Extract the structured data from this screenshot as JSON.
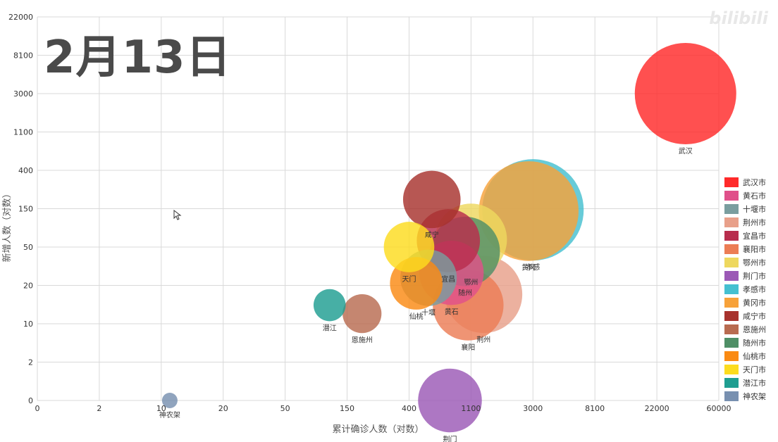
{
  "date_label": "2月13日",
  "watermark": "bilibili",
  "chart_data": {
    "type": "scatter",
    "subtype": "bubble",
    "xlabel": "累计确诊人数（对数）",
    "ylabel": "新增人数（对数）",
    "x_tick_labels": [
      "0",
      "2",
      "10",
      "20",
      "50",
      "150",
      "400",
      "1100",
      "3000",
      "8100",
      "22000",
      "60000"
    ],
    "y_tick_labels": [
      "0",
      "2",
      "10",
      "20",
      "50",
      "150",
      "400",
      "1100",
      "3000",
      "8100",
      "22000"
    ],
    "x_scale": "log",
    "y_scale": "log",
    "grid": true,
    "legend_position": "right",
    "series": [
      {
        "name": "武汉市",
        "label": "武汉",
        "color": "#ff2a2a",
        "x": 35000,
        "y": 3000,
        "size": 35000
      },
      {
        "name": "黄石市",
        "label": "黄石",
        "color": "#e0508a",
        "x": 800,
        "y": 27,
        "size": 800
      },
      {
        "name": "十堰市",
        "label": "十堰",
        "color": "#7a9e9f",
        "x": 550,
        "y": 24,
        "size": 550
      },
      {
        "name": "荆州市",
        "label": "荆州",
        "color": "#e8a08a",
        "x": 1350,
        "y": 17,
        "size": 1350
      },
      {
        "name": "宜昌市",
        "label": "宜昌",
        "color": "#b82d4d",
        "x": 760,
        "y": 60,
        "size": 760
      },
      {
        "name": "襄阳市",
        "label": "襄阳",
        "color": "#ec7d55",
        "x": 1050,
        "y": 14,
        "size": 1050
      },
      {
        "name": "鄂州市",
        "label": "鄂州",
        "color": "#eed85f",
        "x": 1100,
        "y": 62,
        "size": 1100
      },
      {
        "name": "荆门市",
        "label": "荆门",
        "color": "#9b59b6",
        "x": 780,
        "y": 0,
        "size": 780
      },
      {
        "name": "孝感市",
        "label": "孝感",
        "color": "#45c0d0",
        "x": 3000,
        "y": 145,
        "size": 3000
      },
      {
        "name": "黄冈市",
        "label": "黄冈",
        "color": "#f7a23a",
        "x": 2800,
        "y": 140,
        "size": 2800
      },
      {
        "name": "咸宁市",
        "label": "咸宁",
        "color": "#a7322d",
        "x": 580,
        "y": 190,
        "size": 580
      },
      {
        "name": "恩施州",
        "label": "恩施州",
        "color": "#b86b50",
        "x": 190,
        "y": 12,
        "size": 190
      },
      {
        "name": "随州市",
        "label": "随州",
        "color": "#4f8f66",
        "x": 1000,
        "y": 45,
        "size": 1000
      },
      {
        "name": "仙桃市",
        "label": "仙桃",
        "color": "#fa8a13",
        "x": 450,
        "y": 21,
        "size": 450
      },
      {
        "name": "天门市",
        "label": "天门",
        "color": "#fcdc1e",
        "x": 400,
        "y": 50,
        "size": 400
      },
      {
        "name": "潜江市",
        "label": "潜江",
        "color": "#1f9e91",
        "x": 110,
        "y": 14,
        "size": 110
      },
      {
        "name": "神农架",
        "label": "神农架",
        "color": "#7890b0",
        "x": 11,
        "y": 0,
        "size": 11
      }
    ]
  }
}
